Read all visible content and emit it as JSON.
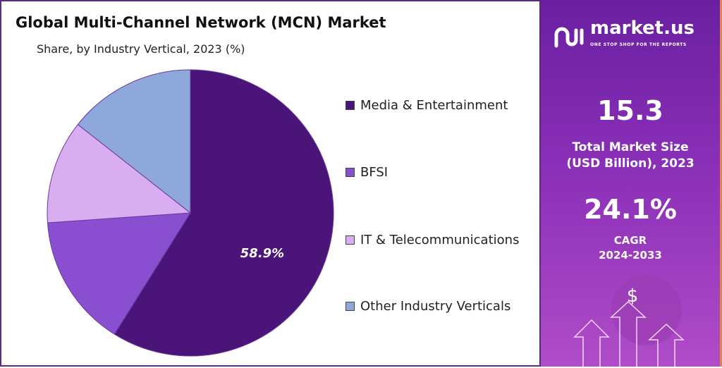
{
  "chart_data": {
    "type": "pie",
    "title": "Global Multi-Channel Network (MCN) Market",
    "subtitle": "Share, by Industry Vertical, 2023 (%)",
    "categories": [
      "Media & Entertainment",
      "BFSI",
      "IT & Telecommunications",
      "Other Industry Verticals"
    ],
    "values": [
      58.9,
      15.0,
      11.7,
      14.4
    ],
    "colors": [
      "#4a1478",
      "#8a4fd0",
      "#d8aef0",
      "#8fa8dc"
    ],
    "data_labels": [
      "58.9%",
      "",
      "",
      ""
    ],
    "start_angle": "12 o'clock",
    "direction": "clockwise",
    "legend_position": "right"
  },
  "sidebar": {
    "logo_name": "market.us",
    "logo_tagline": "ONE STOP SHOP FOR THE REPORTS",
    "market_size": "15.3",
    "market_size_label_1": "Total Market Size",
    "market_size_label_2": "(USD Billion), 2023",
    "cagr": "24.1%",
    "cagr_label_1": "CAGR",
    "cagr_label_2": "2024-2033",
    "dollar_symbol": "$"
  }
}
